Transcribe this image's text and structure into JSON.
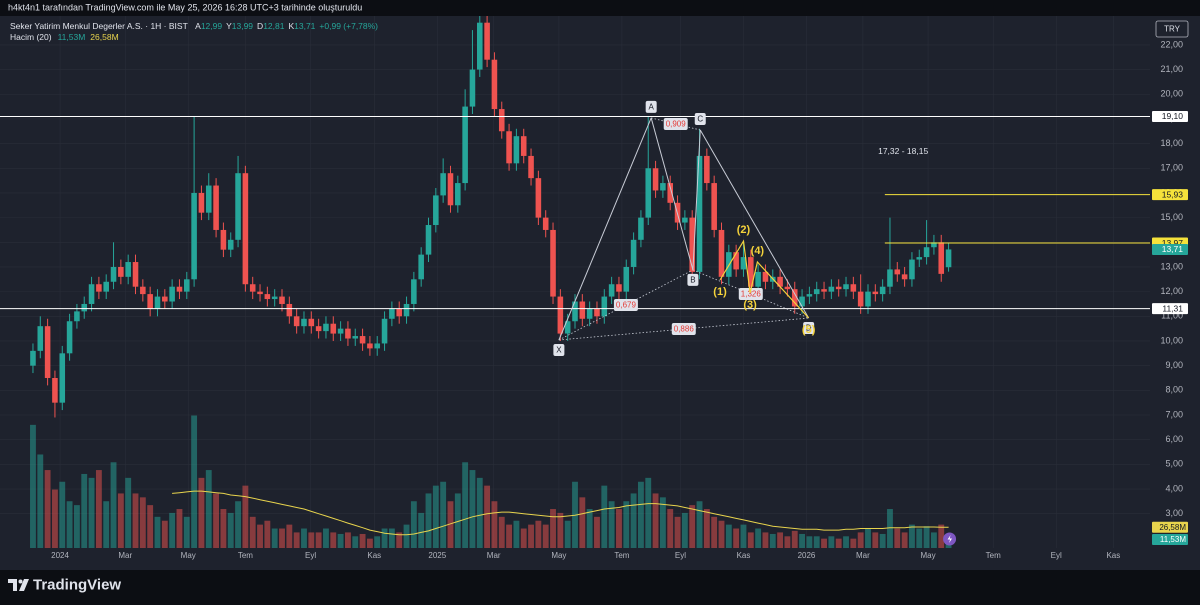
{
  "header": "h4kt4n1 tarafından TradingView.com ile May 25, 2026 16:28 UTC+3 tarihinde oluşturuldu",
  "currency": "TRY",
  "brand": "TradingView",
  "chart_data": {
    "type": "candlestick",
    "title": "Seker Yatirim Menkul Degerler A.S. · 1H · BIST",
    "ohlc_legend": [
      {
        "key": "A",
        "value": "12,99"
      },
      {
        "key": "Y",
        "value": "13,99"
      },
      {
        "key": "D",
        "value": "12,81"
      },
      {
        "key": "K",
        "value": "13,71"
      }
    ],
    "change": "+0,99 (+7,78%)",
    "volume_title": "Hacim (20)",
    "up_color": "#26a69a",
    "down_color": "#ef5350",
    "open": [
      9.0,
      9.6,
      10.6,
      8.5,
      7.5,
      9.5,
      10.8,
      11.2,
      11.5,
      12.3,
      12.0,
      12.4,
      13.0,
      12.6,
      13.2,
      12.2,
      11.9,
      11.3,
      11.8,
      11.6,
      12.2,
      12.0,
      12.5,
      16.0,
      15.2,
      16.3,
      14.5,
      13.7,
      14.1,
      16.8,
      12.3,
      12.0,
      11.9,
      11.7,
      11.8,
      11.5,
      11.0,
      10.6,
      10.9,
      10.6,
      10.4,
      10.7,
      10.3,
      10.5,
      10.1,
      10.2,
      9.9,
      9.7,
      9.9,
      10.9,
      11.3,
      11.0,
      11.5,
      12.5,
      13.5,
      14.7,
      15.9,
      16.8,
      15.5,
      16.4,
      19.5,
      21.0,
      22.9,
      21.4,
      19.4,
      18.5,
      17.2,
      18.3,
      17.5,
      16.6,
      15.0,
      14.5,
      11.8,
      10.3,
      10.8,
      11.6,
      10.9,
      11.3,
      11.0,
      11.8,
      12.3,
      12.0,
      13.0,
      14.1,
      15.0,
      17.0,
      16.1,
      16.4,
      15.6,
      14.8,
      15.0,
      12.8,
      17.5,
      16.4,
      14.5,
      12.6,
      13.6,
      12.9,
      13.4,
      12.2,
      12.8,
      12.4,
      12.6,
      12.2,
      12.1,
      11.4,
      11.8,
      11.9,
      12.1,
      12.0,
      12.2,
      12.1,
      12.3,
      12.0,
      11.4,
      12.0,
      11.9,
      12.2,
      12.9,
      12.7,
      12.5,
      13.3,
      13.4,
      13.8,
      14.0,
      12.99
    ],
    "high": [
      9.9,
      11.0,
      10.9,
      8.8,
      9.8,
      11.1,
      11.5,
      11.8,
      12.6,
      12.6,
      12.7,
      14.0,
      13.3,
      13.5,
      13.5,
      12.5,
      12.2,
      12.1,
      12.1,
      12.5,
      12.5,
      12.8,
      19.1,
      16.3,
      16.8,
      16.6,
      14.8,
      14.4,
      17.5,
      17.1,
      12.6,
      12.3,
      12.2,
      12.1,
      12.1,
      11.8,
      11.3,
      11.2,
      11.2,
      10.9,
      11.0,
      11.0,
      10.8,
      10.8,
      10.5,
      10.5,
      10.2,
      10.2,
      11.2,
      11.6,
      11.6,
      11.8,
      12.8,
      13.8,
      15.0,
      16.2,
      17.4,
      17.1,
      16.7,
      20.2,
      22.6,
      24.0,
      23.6,
      21.7,
      19.7,
      18.8,
      18.6,
      18.6,
      17.8,
      16.9,
      15.3,
      14.8,
      12.1,
      11.1,
      11.9,
      11.9,
      11.6,
      11.6,
      12.1,
      12.6,
      12.6,
      13.3,
      14.4,
      15.3,
      19.1,
      17.3,
      16.7,
      16.7,
      15.9,
      15.3,
      15.3,
      18.6,
      17.8,
      16.7,
      14.8,
      13.9,
      13.9,
      14.0,
      13.7,
      13.1,
      13.1,
      12.9,
      12.9,
      12.5,
      12.4,
      12.1,
      12.2,
      12.4,
      12.4,
      12.5,
      12.5,
      12.6,
      12.6,
      12.7,
      12.3,
      12.3,
      12.5,
      15.0,
      13.2,
      13.0,
      13.6,
      13.7,
      14.9,
      14.3,
      14.3,
      13.99
    ],
    "low": [
      8.7,
      9.3,
      8.2,
      6.9,
      7.2,
      9.2,
      10.5,
      10.9,
      11.2,
      11.7,
      11.7,
      12.1,
      12.3,
      12.3,
      11.9,
      11.6,
      11.0,
      11.0,
      11.3,
      11.3,
      11.7,
      11.7,
      12.2,
      14.9,
      14.9,
      14.2,
      13.4,
      13.4,
      13.8,
      12.0,
      11.7,
      11.6,
      11.4,
      11.4,
      11.2,
      10.7,
      10.3,
      10.3,
      10.3,
      10.1,
      10.1,
      10.0,
      10.0,
      9.8,
      9.8,
      9.6,
      9.4,
      9.4,
      9.6,
      10.6,
      10.7,
      10.7,
      11.2,
      12.2,
      13.2,
      14.4,
      15.6,
      15.2,
      15.2,
      16.1,
      19.2,
      20.7,
      21.1,
      19.1,
      18.2,
      16.9,
      16.9,
      17.2,
      16.3,
      14.7,
      14.2,
      11.5,
      10.0,
      10.0,
      10.5,
      10.6,
      10.6,
      10.7,
      10.7,
      11.5,
      11.7,
      11.7,
      12.7,
      13.8,
      14.7,
      15.8,
      15.8,
      15.3,
      14.5,
      14.5,
      12.5,
      12.5,
      16.1,
      14.2,
      12.3,
      12.3,
      12.6,
      12.6,
      11.9,
      11.9,
      12.1,
      12.1,
      11.9,
      11.8,
      11.1,
      11.1,
      11.5,
      11.6,
      11.7,
      11.7,
      11.8,
      11.8,
      11.7,
      11.1,
      11.1,
      11.6,
      11.6,
      11.9,
      12.4,
      12.2,
      12.2,
      13.0,
      13.1,
      13.5,
      12.4,
      12.81
    ],
    "close": [
      9.6,
      10.6,
      8.5,
      7.5,
      9.5,
      10.8,
      11.2,
      11.5,
      12.3,
      12.0,
      12.4,
      13.0,
      12.6,
      13.2,
      12.2,
      11.9,
      11.3,
      11.8,
      11.6,
      12.2,
      12.0,
      12.5,
      16.0,
      15.2,
      16.3,
      14.5,
      13.7,
      14.1,
      16.8,
      12.3,
      12.0,
      11.9,
      11.7,
      11.8,
      11.5,
      11.0,
      10.6,
      10.9,
      10.6,
      10.4,
      10.7,
      10.3,
      10.5,
      10.1,
      10.2,
      9.9,
      9.7,
      9.9,
      10.9,
      11.3,
      11.0,
      11.5,
      12.5,
      13.5,
      14.7,
      15.9,
      16.8,
      15.5,
      16.4,
      19.5,
      21.0,
      22.9,
      21.4,
      19.4,
      18.5,
      17.2,
      18.3,
      17.5,
      16.6,
      15.0,
      14.5,
      11.8,
      10.3,
      10.8,
      11.6,
      10.9,
      11.3,
      11.0,
      11.8,
      12.3,
      12.0,
      13.0,
      14.1,
      15.0,
      17.0,
      16.1,
      16.4,
      15.6,
      14.8,
      15.0,
      12.8,
      17.5,
      16.4,
      14.5,
      12.6,
      13.6,
      12.9,
      13.4,
      12.2,
      12.8,
      12.4,
      12.6,
      12.2,
      12.1,
      11.4,
      11.8,
      11.9,
      12.1,
      12.0,
      12.2,
      12.1,
      12.3,
      12.0,
      11.4,
      12.0,
      11.9,
      12.2,
      12.9,
      12.7,
      12.5,
      13.3,
      13.4,
      13.8,
      14.0,
      12.72,
      13.71
    ],
    "volume": [
      158,
      120,
      100,
      75,
      85,
      60,
      55,
      95,
      90,
      100,
      60,
      110,
      70,
      90,
      70,
      65,
      55,
      40,
      35,
      45,
      50,
      40,
      170,
      90,
      100,
      70,
      50,
      45,
      60,
      80,
      40,
      30,
      35,
      25,
      25,
      30,
      20,
      25,
      20,
      20,
      25,
      20,
      18,
      20,
      15,
      18,
      12,
      15,
      25,
      25,
      20,
      30,
      60,
      45,
      70,
      80,
      85,
      60,
      70,
      110,
      100,
      90,
      80,
      60,
      40,
      30,
      35,
      25,
      30,
      35,
      30,
      50,
      45,
      35,
      85,
      65,
      50,
      40,
      80,
      60,
      50,
      60,
      70,
      85,
      90,
      70,
      65,
      50,
      40,
      45,
      55,
      60,
      50,
      40,
      35,
      30,
      25,
      30,
      20,
      25,
      20,
      18,
      20,
      15,
      22,
      18,
      15,
      15,
      12,
      15,
      12,
      15,
      12,
      20,
      25,
      20,
      18,
      50,
      25,
      20,
      30,
      25,
      28,
      20,
      30,
      11.53
    ],
    "volume_label": "11,53M",
    "volume_ma": [
      null,
      null,
      null,
      null,
      null,
      null,
      null,
      null,
      null,
      null,
      null,
      null,
      null,
      null,
      null,
      null,
      null,
      null,
      null,
      70,
      71,
      72,
      73,
      73,
      72,
      71,
      70,
      68,
      67,
      66,
      64,
      62,
      60,
      58,
      56,
      54,
      52,
      50,
      47,
      44,
      41,
      38,
      35,
      32,
      29,
      26,
      23,
      21,
      19,
      18,
      17,
      17,
      18,
      20,
      22,
      25,
      28,
      31,
      34,
      37,
      40,
      42,
      44,
      45,
      46,
      46,
      45,
      44,
      43,
      42,
      41,
      40,
      40,
      41,
      42,
      44,
      46,
      48,
      50,
      51,
      52,
      54,
      55,
      56,
      57,
      57,
      56,
      55,
      54,
      52,
      50,
      48,
      46,
      44,
      42,
      40,
      38,
      36,
      34,
      32,
      30,
      28,
      27,
      26,
      25,
      24,
      24,
      24,
      23,
      23,
      23,
      24,
      24,
      25,
      25,
      25,
      25,
      26,
      26,
      26,
      27,
      27,
      27,
      27,
      26.5,
      26.58
    ],
    "volume_ma_label": "26,58M",
    "volume_ma_color": "#e8d44d",
    "xlim": [
      -4.5,
      152.5
    ],
    "xticks": [
      {
        "value": 3.7,
        "label": "2024"
      },
      {
        "value": 12.6,
        "label": "Mar"
      },
      {
        "value": 21.2,
        "label": "May"
      },
      {
        "value": 29,
        "label": "Tem"
      },
      {
        "value": 37.9,
        "label": "Eyl"
      },
      {
        "value": 46.6,
        "label": "Kas"
      },
      {
        "value": 55.2,
        "label": "2025"
      },
      {
        "value": 62.9,
        "label": "Mar"
      },
      {
        "value": 71.8,
        "label": "May"
      },
      {
        "value": 80.4,
        "label": "Tem"
      },
      {
        "value": 88.4,
        "label": "Eyl"
      },
      {
        "value": 97,
        "label": "Kas"
      },
      {
        "value": 105.6,
        "label": "2026"
      },
      {
        "value": 113.3,
        "label": "Mar"
      },
      {
        "value": 122.2,
        "label": "May"
      },
      {
        "value": 131.1,
        "label": "Tem"
      },
      {
        "value": 139.7,
        "label": "Eyl"
      },
      {
        "value": 147.5,
        "label": "Kas"
      }
    ],
    "ylim": [
      1.61,
      23.09
    ],
    "yticks": [
      {
        "value": 3,
        "label": "3,00"
      },
      {
        "value": 4,
        "label": "4,00"
      },
      {
        "value": 5,
        "label": "5,00"
      },
      {
        "value": 6,
        "label": "6,00"
      },
      {
        "value": 7,
        "label": "7,00"
      },
      {
        "value": 8,
        "label": "8,00"
      },
      {
        "value": 9,
        "label": "9,00"
      },
      {
        "value": 10,
        "label": "10,00"
      },
      {
        "value": 11,
        "label": "11,00"
      },
      {
        "value": 12,
        "label": "12,00"
      },
      {
        "value": 13,
        "label": "13,00"
      },
      {
        "value": 14,
        "label": "14,00"
      },
      {
        "value": 15,
        "label": "15,00"
      },
      {
        "value": 16,
        "label": "16,00"
      },
      {
        "value": 17,
        "label": "17,00"
      },
      {
        "value": 18,
        "label": "18,00"
      },
      {
        "value": 19,
        "label": "19,00"
      },
      {
        "value": 20,
        "label": "20,00"
      },
      {
        "value": 21,
        "label": "21,00"
      },
      {
        "value": 22,
        "label": "22,00"
      }
    ],
    "y2lim": [
      0,
      680
    ],
    "last_label": "13,71",
    "levels": [
      {
        "value": 19.1,
        "label": "19,10",
        "color": "#ffffff"
      },
      {
        "value": 11.31,
        "label": "11,31",
        "color": "#ffffff"
      },
      {
        "value": 15.93,
        "label": "15,93",
        "color": "#f5e23b",
        "x_start": 116.3
      },
      {
        "value": 13.97,
        "label": "13,97",
        "color": "#f5e23b",
        "x_start": 116.3
      }
    ],
    "pattern": {
      "color": "#c8ccd6",
      "points": [
        {
          "label": "X",
          "x": 71.8,
          "y": 10.04
        },
        {
          "label": "A",
          "x": 84.4,
          "y": 19.04
        },
        {
          "label": "B",
          "x": 90.1,
          "y": 12.88
        },
        {
          "label": "C",
          "x": 91.1,
          "y": 18.55
        },
        {
          "label": "D",
          "x": 105.9,
          "y": 10.93
        }
      ],
      "ratios": [
        {
          "label": "0,909",
          "from": 1,
          "to": 3
        },
        {
          "label": "0,679",
          "from": 0,
          "to": 2
        },
        {
          "label": "1,326",
          "from": 2,
          "to": 4
        },
        {
          "label": "0,886",
          "from": 0,
          "to": 4
        }
      ]
    },
    "waves": {
      "color": "#f5d33b",
      "points": [
        {
          "label": "(1)",
          "x": 93.8,
          "y": 12.47
        },
        {
          "label": "(2)",
          "x": 97.0,
          "y": 14.05
        },
        {
          "label": "(3)",
          "x": 97.9,
          "y": 11.95
        },
        {
          "label": "(4)",
          "x": 98.9,
          "y": 13.2
        },
        {
          "label": "(5)",
          "x": 105.9,
          "y": 10.93
        }
      ]
    },
    "annotations": [
      {
        "text": "17,32 - 18,15",
        "x": 118.8,
        "y": 17.66
      }
    ],
    "grid": true
  }
}
